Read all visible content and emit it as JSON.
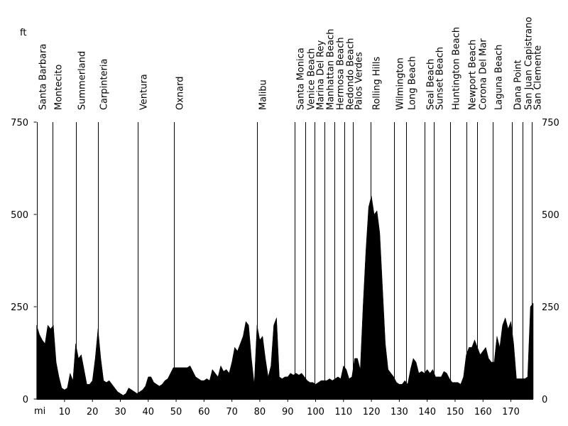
{
  "chart_data": {
    "type": "area",
    "xlabel": "mi",
    "ylabel": "ft",
    "color": "#000000",
    "xlim": [
      0,
      178
    ],
    "ylim": [
      0,
      750
    ],
    "xticks": [
      10,
      20,
      30,
      40,
      50,
      60,
      70,
      80,
      90,
      100,
      110,
      120,
      130,
      140,
      150,
      160,
      170
    ],
    "yticks": [
      0,
      250,
      500,
      750
    ],
    "towns": [
      {
        "name": "Santa Barbara",
        "x": 0
      },
      {
        "name": "Montecito",
        "x": 5.7
      },
      {
        "name": "Summerland",
        "x": 14.1
      },
      {
        "name": "Carpinteria",
        "x": 22
      },
      {
        "name": "Ventura",
        "x": 36.2
      },
      {
        "name": "Oxnard",
        "x": 49.2
      },
      {
        "name": "Malibu",
        "x": 79
      },
      {
        "name": "Santa Monica",
        "x": 92.5
      },
      {
        "name": "Venice Beach",
        "x": 96.3
      },
      {
        "name": "Marina Del Rey",
        "x": 99.6
      },
      {
        "name": "Manhattan Beach",
        "x": 103.2
      },
      {
        "name": "Hermosa Beach",
        "x": 106.8
      },
      {
        "name": "Redondo Beach",
        "x": 110.3
      },
      {
        "name": "Palos Verdes",
        "x": 113.4
      },
      {
        "name": "Rolling Hills",
        "x": 119.8
      },
      {
        "name": "Wilmington",
        "x": 128.2
      },
      {
        "name": "Long Beach",
        "x": 132.4
      },
      {
        "name": "Seal Beach",
        "x": 139
      },
      {
        "name": "Sunset Beach",
        "x": 142.4
      },
      {
        "name": "Huntington Beach",
        "x": 148.2
      },
      {
        "name": "Newport Beach",
        "x": 154.1
      },
      {
        "name": "Corona Del Mar",
        "x": 157.9
      },
      {
        "name": "Laguna Beach",
        "x": 163.5
      },
      {
        "name": "Dana Point",
        "x": 170.3
      },
      {
        "name": "San Juan Capistrano",
        "x": 174.2
      },
      {
        "name": "San Clemente",
        "x": 177.5
      }
    ],
    "x": [
      0,
      1,
      2,
      3,
      4,
      5,
      6,
      7,
      8,
      9,
      10,
      11,
      12,
      13,
      14,
      15,
      16,
      17,
      18,
      19,
      20,
      21,
      22,
      23,
      24,
      25,
      26,
      27,
      28,
      29,
      30,
      31,
      32,
      33,
      34,
      35,
      36,
      37,
      38,
      39,
      40,
      41,
      42,
      43,
      44,
      45,
      46,
      47,
      48,
      49,
      50,
      51,
      52,
      53,
      54,
      55,
      56,
      57,
      58,
      59,
      60,
      61,
      62,
      63,
      64,
      65,
      66,
      67,
      68,
      69,
      70,
      71,
      72,
      73,
      74,
      75,
      76,
      77,
      78,
      79,
      80,
      81,
      82,
      83,
      84,
      85,
      86,
      87,
      88,
      89,
      90,
      91,
      92,
      93,
      94,
      95,
      96,
      97,
      98,
      99,
      100,
      101,
      102,
      103,
      104,
      105,
      106,
      107,
      108,
      109,
      110,
      111,
      112,
      113,
      114,
      115,
      116,
      117,
      118,
      119,
      120,
      121,
      122,
      123,
      124,
      125,
      126,
      127,
      128,
      129,
      130,
      131,
      132,
      133,
      134,
      135,
      136,
      137,
      138,
      139,
      140,
      141,
      142,
      143,
      144,
      145,
      146,
      147,
      148,
      149,
      150,
      151,
      152,
      153,
      154,
      155,
      156,
      157,
      158,
      159,
      160,
      161,
      162,
      163,
      164,
      165,
      166,
      167,
      168,
      169,
      170,
      171,
      172,
      173,
      174,
      175,
      176,
      177,
      178
    ],
    "values": [
      200,
      175,
      160,
      150,
      200,
      190,
      200,
      100,
      60,
      30,
      25,
      30,
      70,
      50,
      150,
      110,
      120,
      80,
      40,
      40,
      50,
      110,
      190,
      110,
      50,
      45,
      50,
      40,
      30,
      20,
      15,
      10,
      15,
      30,
      25,
      20,
      15,
      20,
      25,
      35,
      60,
      60,
      45,
      40,
      35,
      40,
      50,
      55,
      70,
      85,
      85,
      85,
      85,
      85,
      85,
      90,
      75,
      60,
      55,
      50,
      50,
      55,
      50,
      80,
      70,
      60,
      90,
      75,
      80,
      70,
      100,
      140,
      130,
      150,
      170,
      210,
      200,
      110,
      40,
      200,
      160,
      170,
      110,
      60,
      90,
      200,
      220,
      60,
      55,
      60,
      60,
      70,
      65,
      70,
      65,
      70,
      60,
      50,
      45,
      45,
      40,
      45,
      50,
      50,
      50,
      55,
      50,
      55,
      60,
      55,
      90,
      80,
      55,
      60,
      110,
      110,
      80,
      250,
      400,
      520,
      550,
      500,
      510,
      450,
      300,
      150,
      80,
      70,
      60,
      45,
      40,
      40,
      50,
      40,
      80,
      110,
      100,
      70,
      75,
      70,
      80,
      70,
      80,
      60,
      60,
      60,
      75,
      70,
      55,
      45,
      45,
      45,
      40,
      60,
      120,
      140,
      140,
      160,
      140,
      120,
      130,
      140,
      110,
      100,
      100,
      170,
      140,
      200,
      220,
      190,
      210,
      150,
      55,
      55,
      55,
      55,
      60,
      250,
      260
    ]
  }
}
